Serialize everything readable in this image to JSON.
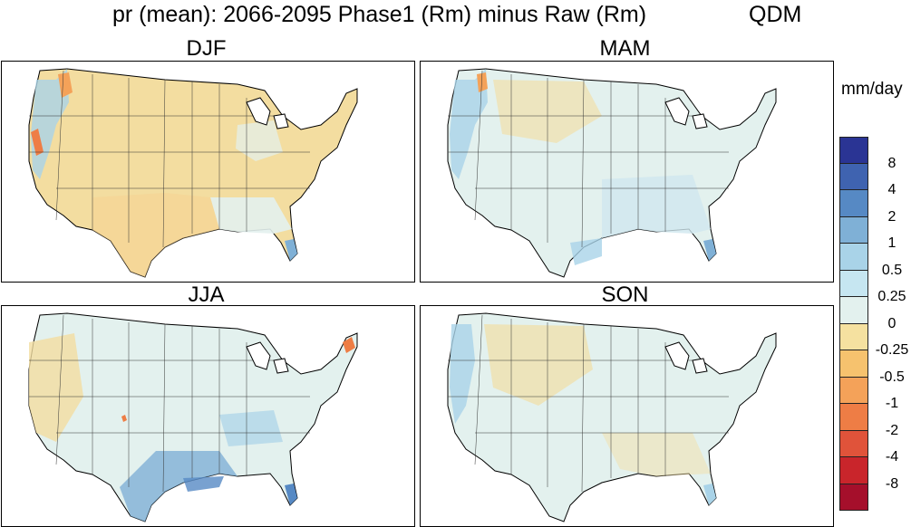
{
  "figure": {
    "title": "pr (mean): 2066-2095 Phase1 (Rm) minus Raw (Rm)",
    "method": "QDM",
    "units": "mm/day"
  },
  "panels": [
    {
      "label": "DJF"
    },
    {
      "label": "MAM"
    },
    {
      "label": "JJA"
    },
    {
      "label": "SON"
    }
  ],
  "colorbar": {
    "colors_top_to_bottom": [
      "#2a3494",
      "#3f63b0",
      "#5689c4",
      "#7fb0d6",
      "#a9d3e8",
      "#c6e6f1",
      "#e3f1ee",
      "#f5e1a0",
      "#f6c26e",
      "#f4a259",
      "#ee7d45",
      "#e0533a",
      "#c9252b",
      "#a50f2b"
    ],
    "tick_labels_top_to_bottom": [
      "8",
      "4",
      "2",
      "1",
      "0.5",
      "0.25",
      "0",
      "-0.25",
      "-0.5",
      "-1",
      "-2",
      "-4",
      "-8"
    ]
  }
}
